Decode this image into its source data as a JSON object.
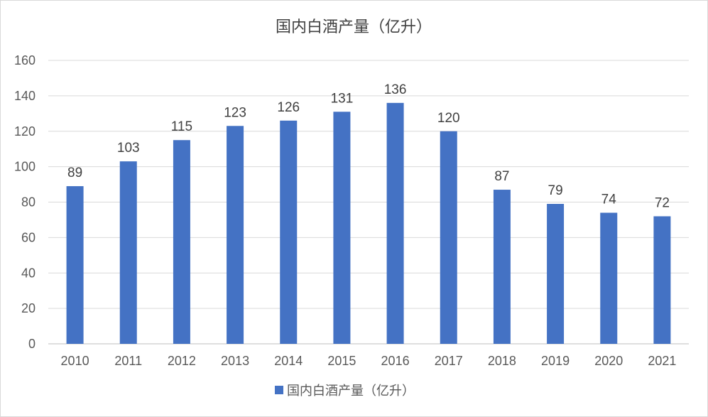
{
  "chart_data": {
    "type": "bar",
    "title": "国内白酒产量（亿升）",
    "categories": [
      "2010",
      "2011",
      "2012",
      "2013",
      "2014",
      "2015",
      "2016",
      "2017",
      "2018",
      "2019",
      "2020",
      "2021"
    ],
    "series": [
      {
        "name": "国内白酒产量（亿升）",
        "values": [
          89,
          103,
          115,
          123,
          126,
          131,
          136,
          120,
          87,
          79,
          74,
          72
        ],
        "color": "#4472c4"
      }
    ],
    "ylim": [
      0,
      160
    ],
    "yticks": [
      0,
      20,
      40,
      60,
      80,
      100,
      120,
      140,
      160
    ],
    "grid": true,
    "data_labels": true,
    "legend_position": "bottom"
  }
}
